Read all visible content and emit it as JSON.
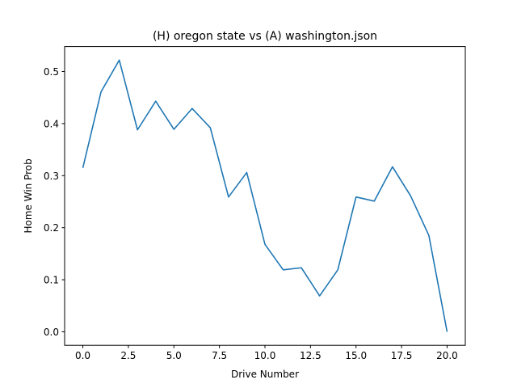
{
  "chart_data": {
    "type": "line",
    "title": "(H) oregon state vs (A) washington.json",
    "xlabel": "Drive Number",
    "ylabel": "Home Win Prob",
    "xlim": [
      -1.0,
      21.0
    ],
    "ylim": [
      -0.026,
      0.548
    ],
    "xticks": [
      0.0,
      2.5,
      5.0,
      7.5,
      10.0,
      12.5,
      15.0,
      17.5,
      20.0
    ],
    "xtick_labels": [
      "0.0",
      "2.5",
      "5.0",
      "7.5",
      "10.0",
      "12.5",
      "15.0",
      "17.5",
      "20.0"
    ],
    "yticks": [
      0.0,
      0.1,
      0.2,
      0.3,
      0.4,
      0.5
    ],
    "ytick_labels": [
      "0.0",
      "0.1",
      "0.2",
      "0.3",
      "0.4",
      "0.5"
    ],
    "grid": false,
    "series": [
      {
        "color": "#1f77b4",
        "x": [
          0,
          1,
          2,
          3,
          4,
          5,
          6,
          7,
          8,
          9,
          10,
          11,
          12,
          13,
          14,
          15,
          16,
          17,
          18,
          19,
          20
        ],
        "y": [
          0.315,
          0.461,
          0.522,
          0.388,
          0.443,
          0.389,
          0.429,
          0.392,
          0.259,
          0.306,
          0.168,
          0.119,
          0.123,
          0.069,
          0.119,
          0.259,
          0.251,
          0.317,
          0.261,
          0.185,
          0.0
        ]
      }
    ]
  }
}
